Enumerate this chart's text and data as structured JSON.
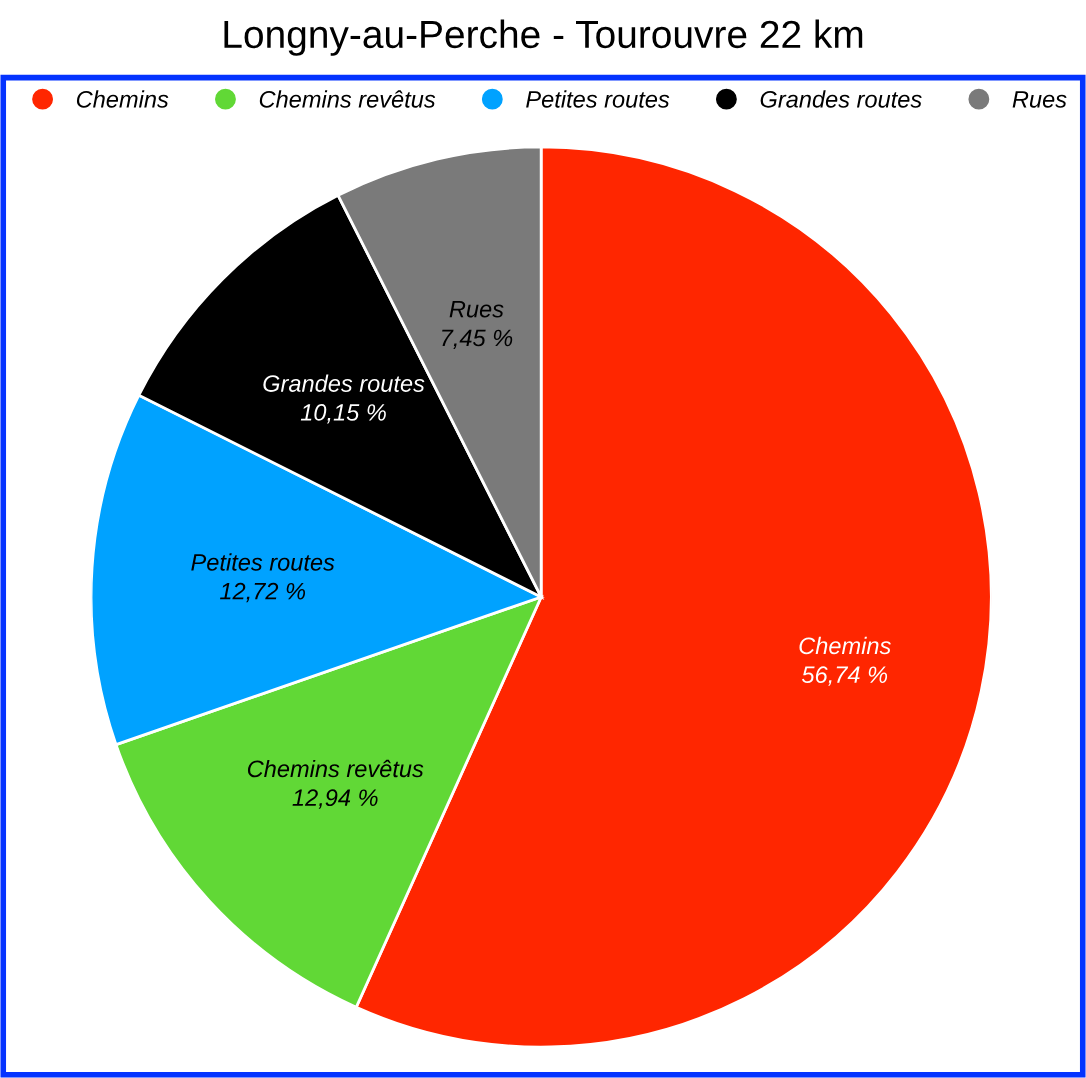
{
  "chart_data": {
    "type": "pie",
    "title": "Longny-au-Perche - Tourouvre 22 km",
    "categories": [
      "Chemins",
      "Chemins revêtus",
      "Petites routes",
      "Grandes routes",
      "Rues"
    ],
    "values": [
      56.74,
      12.94,
      12.72,
      10.15,
      7.45
    ],
    "colors": [
      "#ff2600",
      "#61d836",
      "#00a2ff",
      "#000000",
      "#7a7a7a"
    ],
    "value_labels": [
      "56,74 %",
      "12,94 %",
      "12,72 %",
      "10,15 %",
      "7,45 %"
    ],
    "legend": "top"
  }
}
